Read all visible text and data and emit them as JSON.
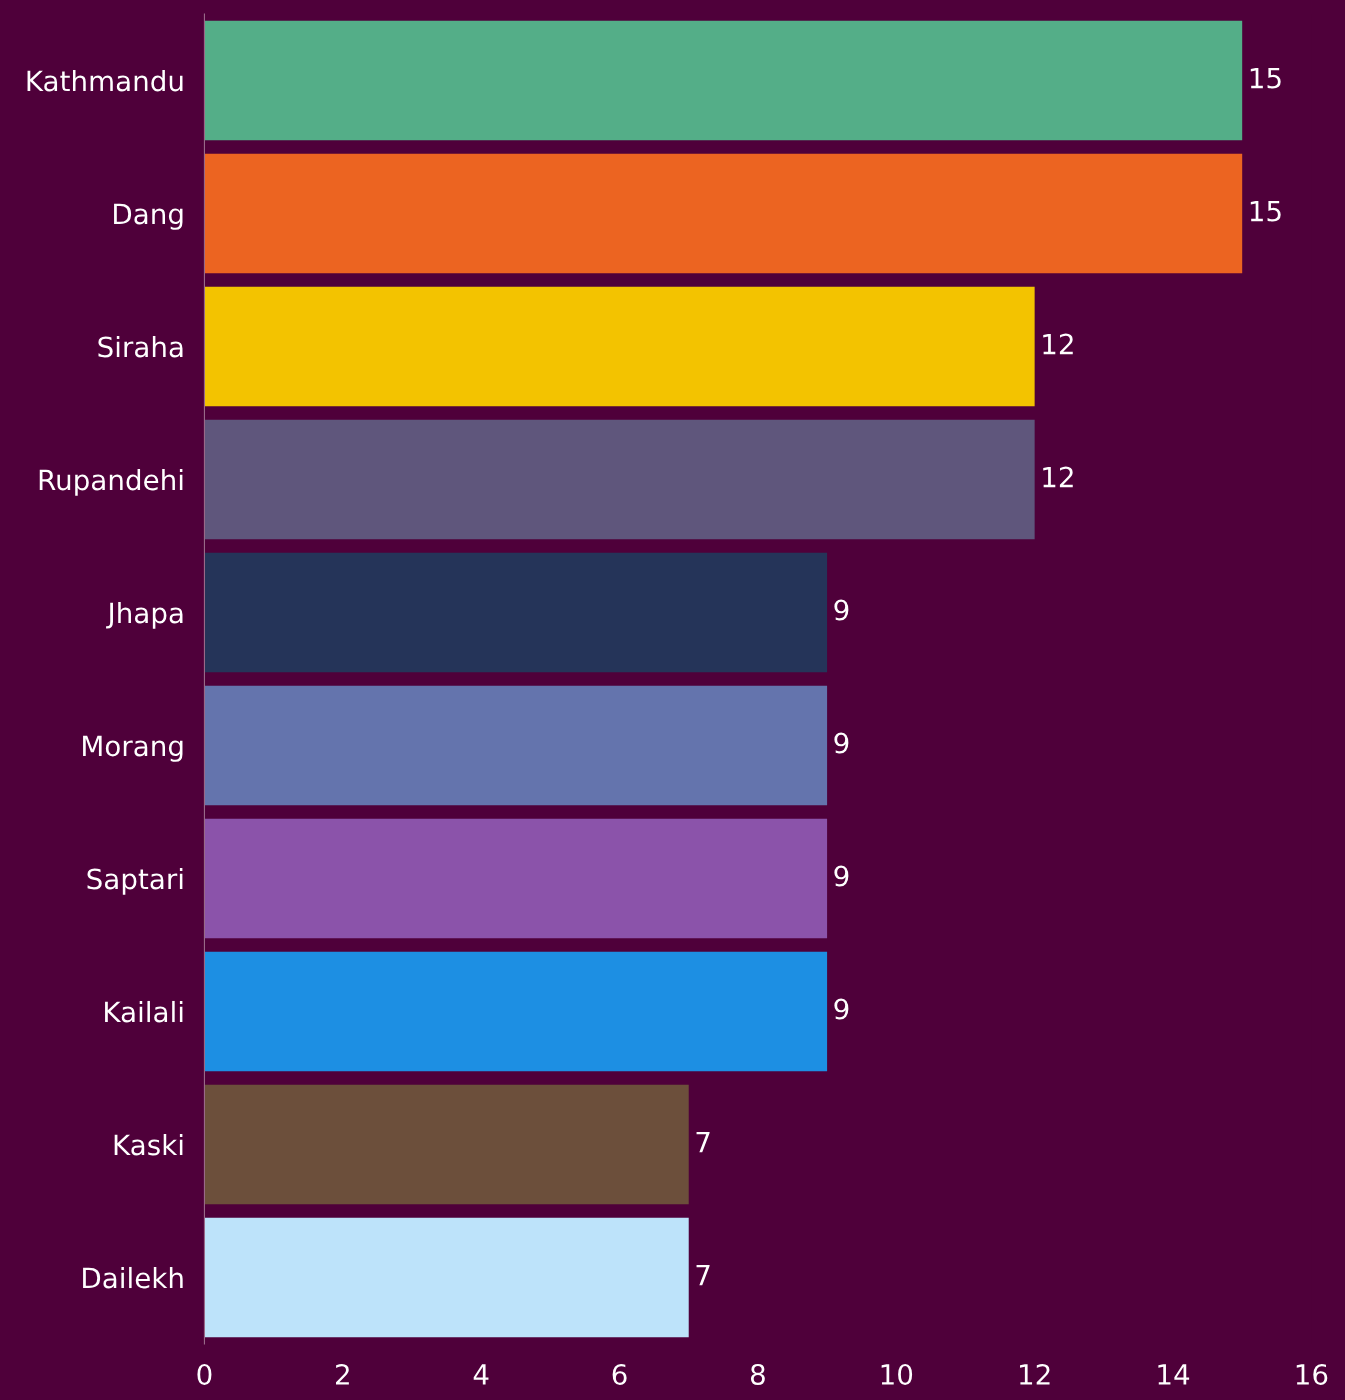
{
  "chart_data": {
    "type": "bar",
    "orientation": "horizontal",
    "categories": [
      "Kathmandu",
      "Dang",
      "Siraha",
      "Rupandehi",
      "Jhapa",
      "Morang",
      "Saptari",
      "Kailali",
      "Kaski",
      "Dailekh"
    ],
    "values": [
      15,
      15,
      12,
      12,
      9,
      9,
      9,
      9,
      7,
      7
    ],
    "colors": [
      "#54ae88",
      "#ec6421",
      "#f3c300",
      "#5f567c",
      "#253459",
      "#6474ad",
      "#8b53aa",
      "#1d8fe3",
      "#6c4f3b",
      "#bde3fa"
    ],
    "xlim": [
      0,
      16
    ],
    "xticks": [
      0,
      2,
      4,
      6,
      8,
      10,
      12,
      14,
      16
    ],
    "data_labels": true,
    "grid": false,
    "legend": false
  }
}
